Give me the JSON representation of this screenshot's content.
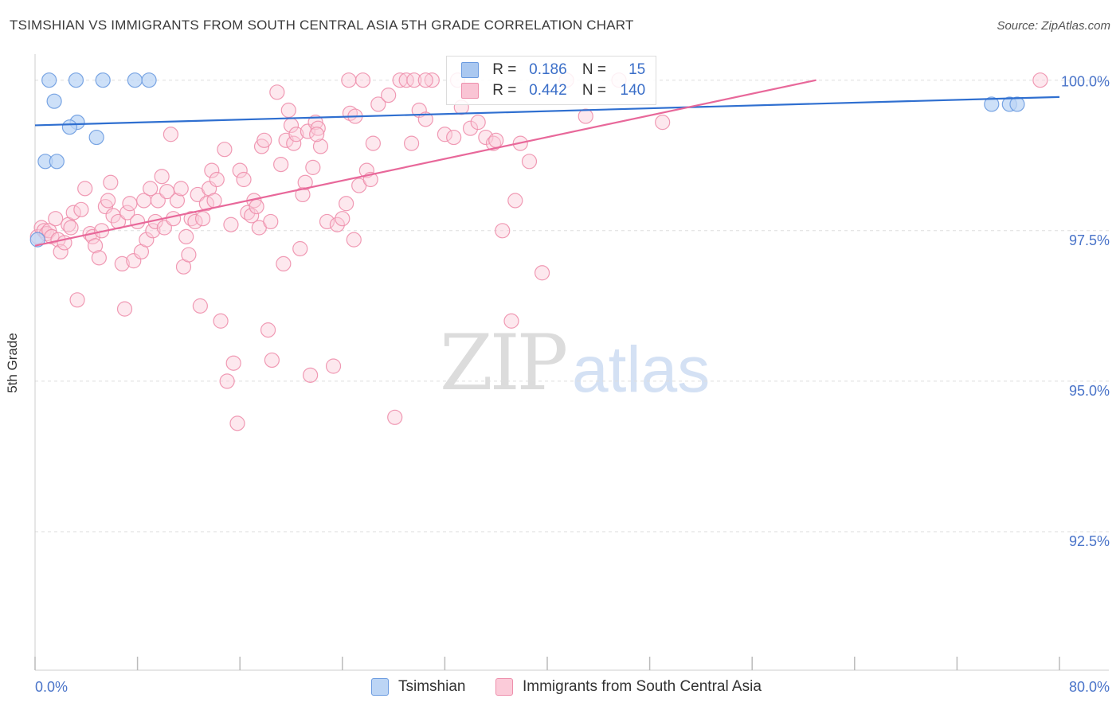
{
  "title": "TSIMSHIAN VS IMMIGRANTS FROM SOUTH CENTRAL ASIA 5TH GRADE CORRELATION CHART",
  "source": "Source: ZipAtlas.com",
  "watermark": {
    "zip": "ZIP",
    "atlas": "atlas"
  },
  "legend_top": {
    "rows": [
      {
        "r_label": "R =",
        "r_value": "0.186",
        "n_label": "N =",
        "n_value": "15",
        "color": "#aac8f0",
        "border": "#6b9be0"
      },
      {
        "r_label": "R =",
        "r_value": "0.442",
        "n_label": "N =",
        "n_value": "140",
        "color": "#f9c4d4",
        "border": "#ee8fac"
      }
    ]
  },
  "legend_bottom": [
    {
      "label": "Tsimshian",
      "color": "#bcd5f5",
      "border": "#6b9be0"
    },
    {
      "label": "Immigrants from South Central Asia",
      "color": "#fbcbd9",
      "border": "#ee8fac"
    }
  ],
  "chart_data": {
    "type": "scatter",
    "title": "TSIMSHIAN VS IMMIGRANTS FROM SOUTH CENTRAL ASIA 5TH GRADE CORRELATION CHART",
    "xlabel": "",
    "ylabel": "5th Grade",
    "xlim": [
      0,
      80
    ],
    "ylim": [
      90.2,
      100.3
    ],
    "x_tick_labels": [
      {
        "value": 0,
        "label": "0.0%"
      },
      {
        "value": 80,
        "label": "80.0%"
      }
    ],
    "x_tick_marks": [
      0,
      8,
      16,
      24,
      32,
      40,
      48,
      56,
      64,
      72,
      80
    ],
    "y_ticks": [
      {
        "value": 100.0,
        "label": "100.0%"
      },
      {
        "value": 97.5,
        "label": "97.5%"
      },
      {
        "value": 95.0,
        "label": "95.0%"
      },
      {
        "value": 92.5,
        "label": "92.5%"
      }
    ],
    "series": [
      {
        "name": "Tsimshian",
        "color": "#6b9be0",
        "fill": "#bcd5f5",
        "trend": {
          "x0": 0,
          "y0": 99.25,
          "x1": 80,
          "y1": 99.72,
          "color": "#2f6fd0"
        },
        "points": [
          [
            1.1,
            100.0
          ],
          [
            3.2,
            100.0
          ],
          [
            5.3,
            100.0
          ],
          [
            7.8,
            100.0
          ],
          [
            8.9,
            100.0
          ],
          [
            1.5,
            99.65
          ],
          [
            3.3,
            99.3
          ],
          [
            2.7,
            99.22
          ],
          [
            4.8,
            99.05
          ],
          [
            0.8,
            98.65
          ],
          [
            1.7,
            98.65
          ],
          [
            0.2,
            97.35
          ],
          [
            74.7,
            99.6
          ],
          [
            76.1,
            99.6
          ],
          [
            76.7,
            99.6
          ]
        ]
      },
      {
        "name": "Immigrants from South Central Asia",
        "color": "#ee8fac",
        "fill": "#fbcbd9",
        "trend": {
          "x0": 0,
          "y0": 97.25,
          "x1": 61,
          "y1": 100.0,
          "color": "#e8689a"
        },
        "points": [
          [
            0.2,
            97.4
          ],
          [
            0.5,
            97.55
          ],
          [
            0.7,
            97.5
          ],
          [
            0.9,
            97.45
          ],
          [
            1.1,
            97.5
          ],
          [
            1.3,
            97.4
          ],
          [
            1.6,
            97.7
          ],
          [
            1.8,
            97.35
          ],
          [
            2.0,
            97.15
          ],
          [
            2.3,
            97.3
          ],
          [
            2.6,
            97.6
          ],
          [
            2.8,
            97.55
          ],
          [
            3.0,
            97.8
          ],
          [
            3.3,
            96.35
          ],
          [
            3.6,
            97.85
          ],
          [
            3.9,
            98.2
          ],
          [
            4.3,
            97.45
          ],
          [
            4.5,
            97.4
          ],
          [
            4.7,
            97.25
          ],
          [
            5.0,
            97.05
          ],
          [
            5.2,
            97.5
          ],
          [
            5.5,
            97.9
          ],
          [
            5.7,
            98.0
          ],
          [
            5.9,
            98.3
          ],
          [
            6.1,
            97.75
          ],
          [
            6.5,
            97.65
          ],
          [
            6.8,
            96.95
          ],
          [
            7.0,
            96.2
          ],
          [
            7.2,
            97.8
          ],
          [
            7.4,
            97.95
          ],
          [
            7.7,
            97.0
          ],
          [
            8.0,
            97.65
          ],
          [
            8.3,
            97.15
          ],
          [
            8.5,
            98.0
          ],
          [
            8.7,
            97.35
          ],
          [
            9.0,
            98.2
          ],
          [
            9.2,
            97.5
          ],
          [
            9.4,
            97.65
          ],
          [
            9.6,
            98.0
          ],
          [
            9.9,
            98.4
          ],
          [
            10.1,
            97.55
          ],
          [
            10.3,
            98.15
          ],
          [
            10.6,
            99.1
          ],
          [
            10.8,
            97.7
          ],
          [
            11.1,
            98.0
          ],
          [
            11.4,
            98.2
          ],
          [
            11.6,
            96.9
          ],
          [
            11.8,
            97.4
          ],
          [
            12.0,
            97.1
          ],
          [
            12.2,
            97.7
          ],
          [
            12.5,
            97.65
          ],
          [
            12.7,
            98.1
          ],
          [
            12.9,
            96.25
          ],
          [
            13.1,
            97.7
          ],
          [
            13.4,
            97.95
          ],
          [
            13.6,
            98.2
          ],
          [
            13.8,
            98.5
          ],
          [
            14.0,
            98.0
          ],
          [
            14.2,
            98.35
          ],
          [
            14.5,
            96.0
          ],
          [
            14.8,
            98.85
          ],
          [
            15.0,
            95.0
          ],
          [
            15.3,
            97.6
          ],
          [
            15.5,
            95.3
          ],
          [
            15.8,
            94.3
          ],
          [
            16.0,
            98.5
          ],
          [
            16.3,
            98.35
          ],
          [
            16.6,
            97.8
          ],
          [
            16.9,
            97.75
          ],
          [
            17.1,
            98.0
          ],
          [
            17.3,
            97.9
          ],
          [
            17.5,
            97.55
          ],
          [
            17.7,
            98.9
          ],
          [
            17.9,
            99.0
          ],
          [
            18.2,
            95.85
          ],
          [
            18.4,
            97.65
          ],
          [
            18.5,
            95.35
          ],
          [
            18.9,
            99.8
          ],
          [
            19.2,
            98.6
          ],
          [
            19.4,
            96.95
          ],
          [
            19.6,
            99.0
          ],
          [
            19.8,
            99.5
          ],
          [
            20.0,
            99.25
          ],
          [
            20.2,
            98.95
          ],
          [
            20.4,
            99.1
          ],
          [
            20.7,
            97.2
          ],
          [
            20.9,
            98.1
          ],
          [
            21.1,
            98.3
          ],
          [
            21.3,
            99.15
          ],
          [
            21.5,
            95.1
          ],
          [
            21.7,
            98.55
          ],
          [
            21.9,
            99.3
          ],
          [
            22.1,
            99.2
          ],
          [
            22.3,
            98.9
          ],
          [
            22.8,
            97.65
          ],
          [
            23.3,
            95.25
          ],
          [
            23.6,
            97.6
          ],
          [
            24.0,
            97.7
          ],
          [
            24.3,
            97.95
          ],
          [
            24.6,
            99.45
          ],
          [
            24.9,
            97.35
          ],
          [
            25.0,
            99.4
          ],
          [
            25.3,
            98.25
          ],
          [
            25.6,
            100.0
          ],
          [
            25.9,
            98.5
          ],
          [
            26.2,
            98.35
          ],
          [
            26.4,
            98.95
          ],
          [
            26.8,
            99.6
          ],
          [
            27.6,
            99.75
          ],
          [
            28.1,
            94.4
          ],
          [
            28.5,
            100.0
          ],
          [
            29.0,
            100.0
          ],
          [
            29.4,
            98.95
          ],
          [
            29.6,
            100.0
          ],
          [
            30.0,
            99.5
          ],
          [
            30.5,
            99.35
          ],
          [
            31.0,
            100.0
          ],
          [
            32.0,
            99.1
          ],
          [
            32.7,
            99.05
          ],
          [
            33.3,
            99.55
          ],
          [
            34.0,
            99.2
          ],
          [
            34.6,
            99.3
          ],
          [
            35.2,
            99.05
          ],
          [
            35.8,
            98.95
          ],
          [
            36.5,
            97.5
          ],
          [
            37.2,
            96.0
          ],
          [
            37.5,
            98.0
          ],
          [
            37.9,
            98.95
          ],
          [
            38.6,
            98.65
          ],
          [
            39.6,
            96.8
          ],
          [
            41.5,
            100.0
          ],
          [
            43.0,
            99.4
          ],
          [
            45.6,
            100.0
          ],
          [
            30.5,
            100.0
          ],
          [
            24.5,
            100.0
          ],
          [
            49.0,
            99.3
          ],
          [
            36.0,
            99.0
          ],
          [
            78.5,
            100.0
          ],
          [
            33.0,
            100.0
          ],
          [
            22.0,
            99.1
          ]
        ]
      }
    ]
  }
}
